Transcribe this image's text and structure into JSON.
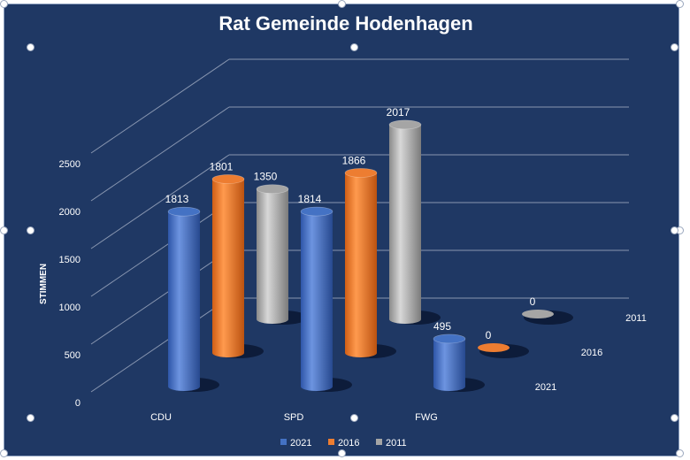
{
  "chart_data": {
    "type": "bar",
    "title": "Rat Gemeinde Hodenhagen",
    "xlabel": "",
    "ylabel": "STIMMEN",
    "ylim": [
      0,
      2500
    ],
    "yticks": [
      0,
      500,
      1000,
      1500,
      2000,
      2500
    ],
    "categories": [
      "CDU",
      "SPD",
      "FWG"
    ],
    "series": [
      {
        "name": "2021",
        "values": [
          1813,
          1814,
          495
        ],
        "color": "#4472c4"
      },
      {
        "name": "2016",
        "values": [
          1801,
          1866,
          0
        ],
        "color": "#ed7d31"
      },
      {
        "name": "2011",
        "values": [
          1350,
          2017,
          0
        ],
        "color": "#a5a5a5"
      }
    ],
    "depth_labels": [
      "2021",
      "2016",
      "2011"
    ],
    "grid": true,
    "legend": "bottom"
  },
  "colors": {
    "background": "#1f3864",
    "text": "#ffffff",
    "grid": "#8896b0"
  }
}
